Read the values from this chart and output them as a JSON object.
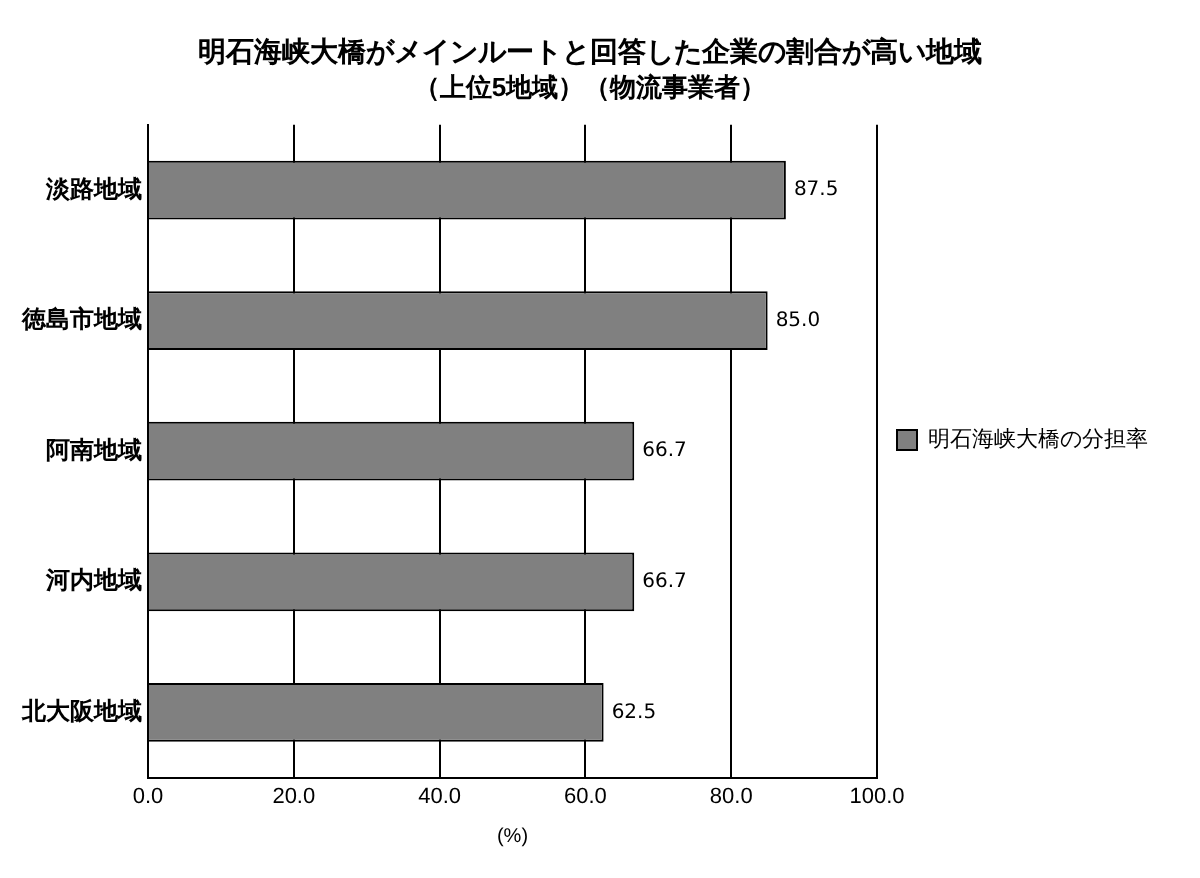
{
  "chart_data": {
    "type": "bar",
    "orientation": "horizontal",
    "title": "明石海峡大橋がメインルートと回答した企業の割合が高い地域",
    "subtitle": "（上位5地域）（物流事業者）",
    "xlabel": "(%)",
    "categories": [
      "淡路地域",
      "徳島市地域",
      "阿南地域",
      "河内地域",
      "北大阪地域"
    ],
    "series": [
      {
        "name": "明石海峡大橋の分担率",
        "color": "#808080",
        "values": [
          87.5,
          85.0,
          66.7,
          66.7,
          62.5
        ]
      }
    ],
    "value_labels": [
      "87.5",
      "85.0",
      "66.7",
      "66.7",
      "62.5"
    ],
    "xlim": [
      0,
      100
    ],
    "xticks": [
      {
        "value": 0,
        "label": "0.0"
      },
      {
        "value": 20,
        "label": "20.0"
      },
      {
        "value": 40,
        "label": "40.0"
      },
      {
        "value": 60,
        "label": "60.0"
      },
      {
        "value": 80,
        "label": "80.0"
      },
      {
        "value": 100,
        "label": "100.0"
      }
    ],
    "grid": "x",
    "legend": "right"
  }
}
